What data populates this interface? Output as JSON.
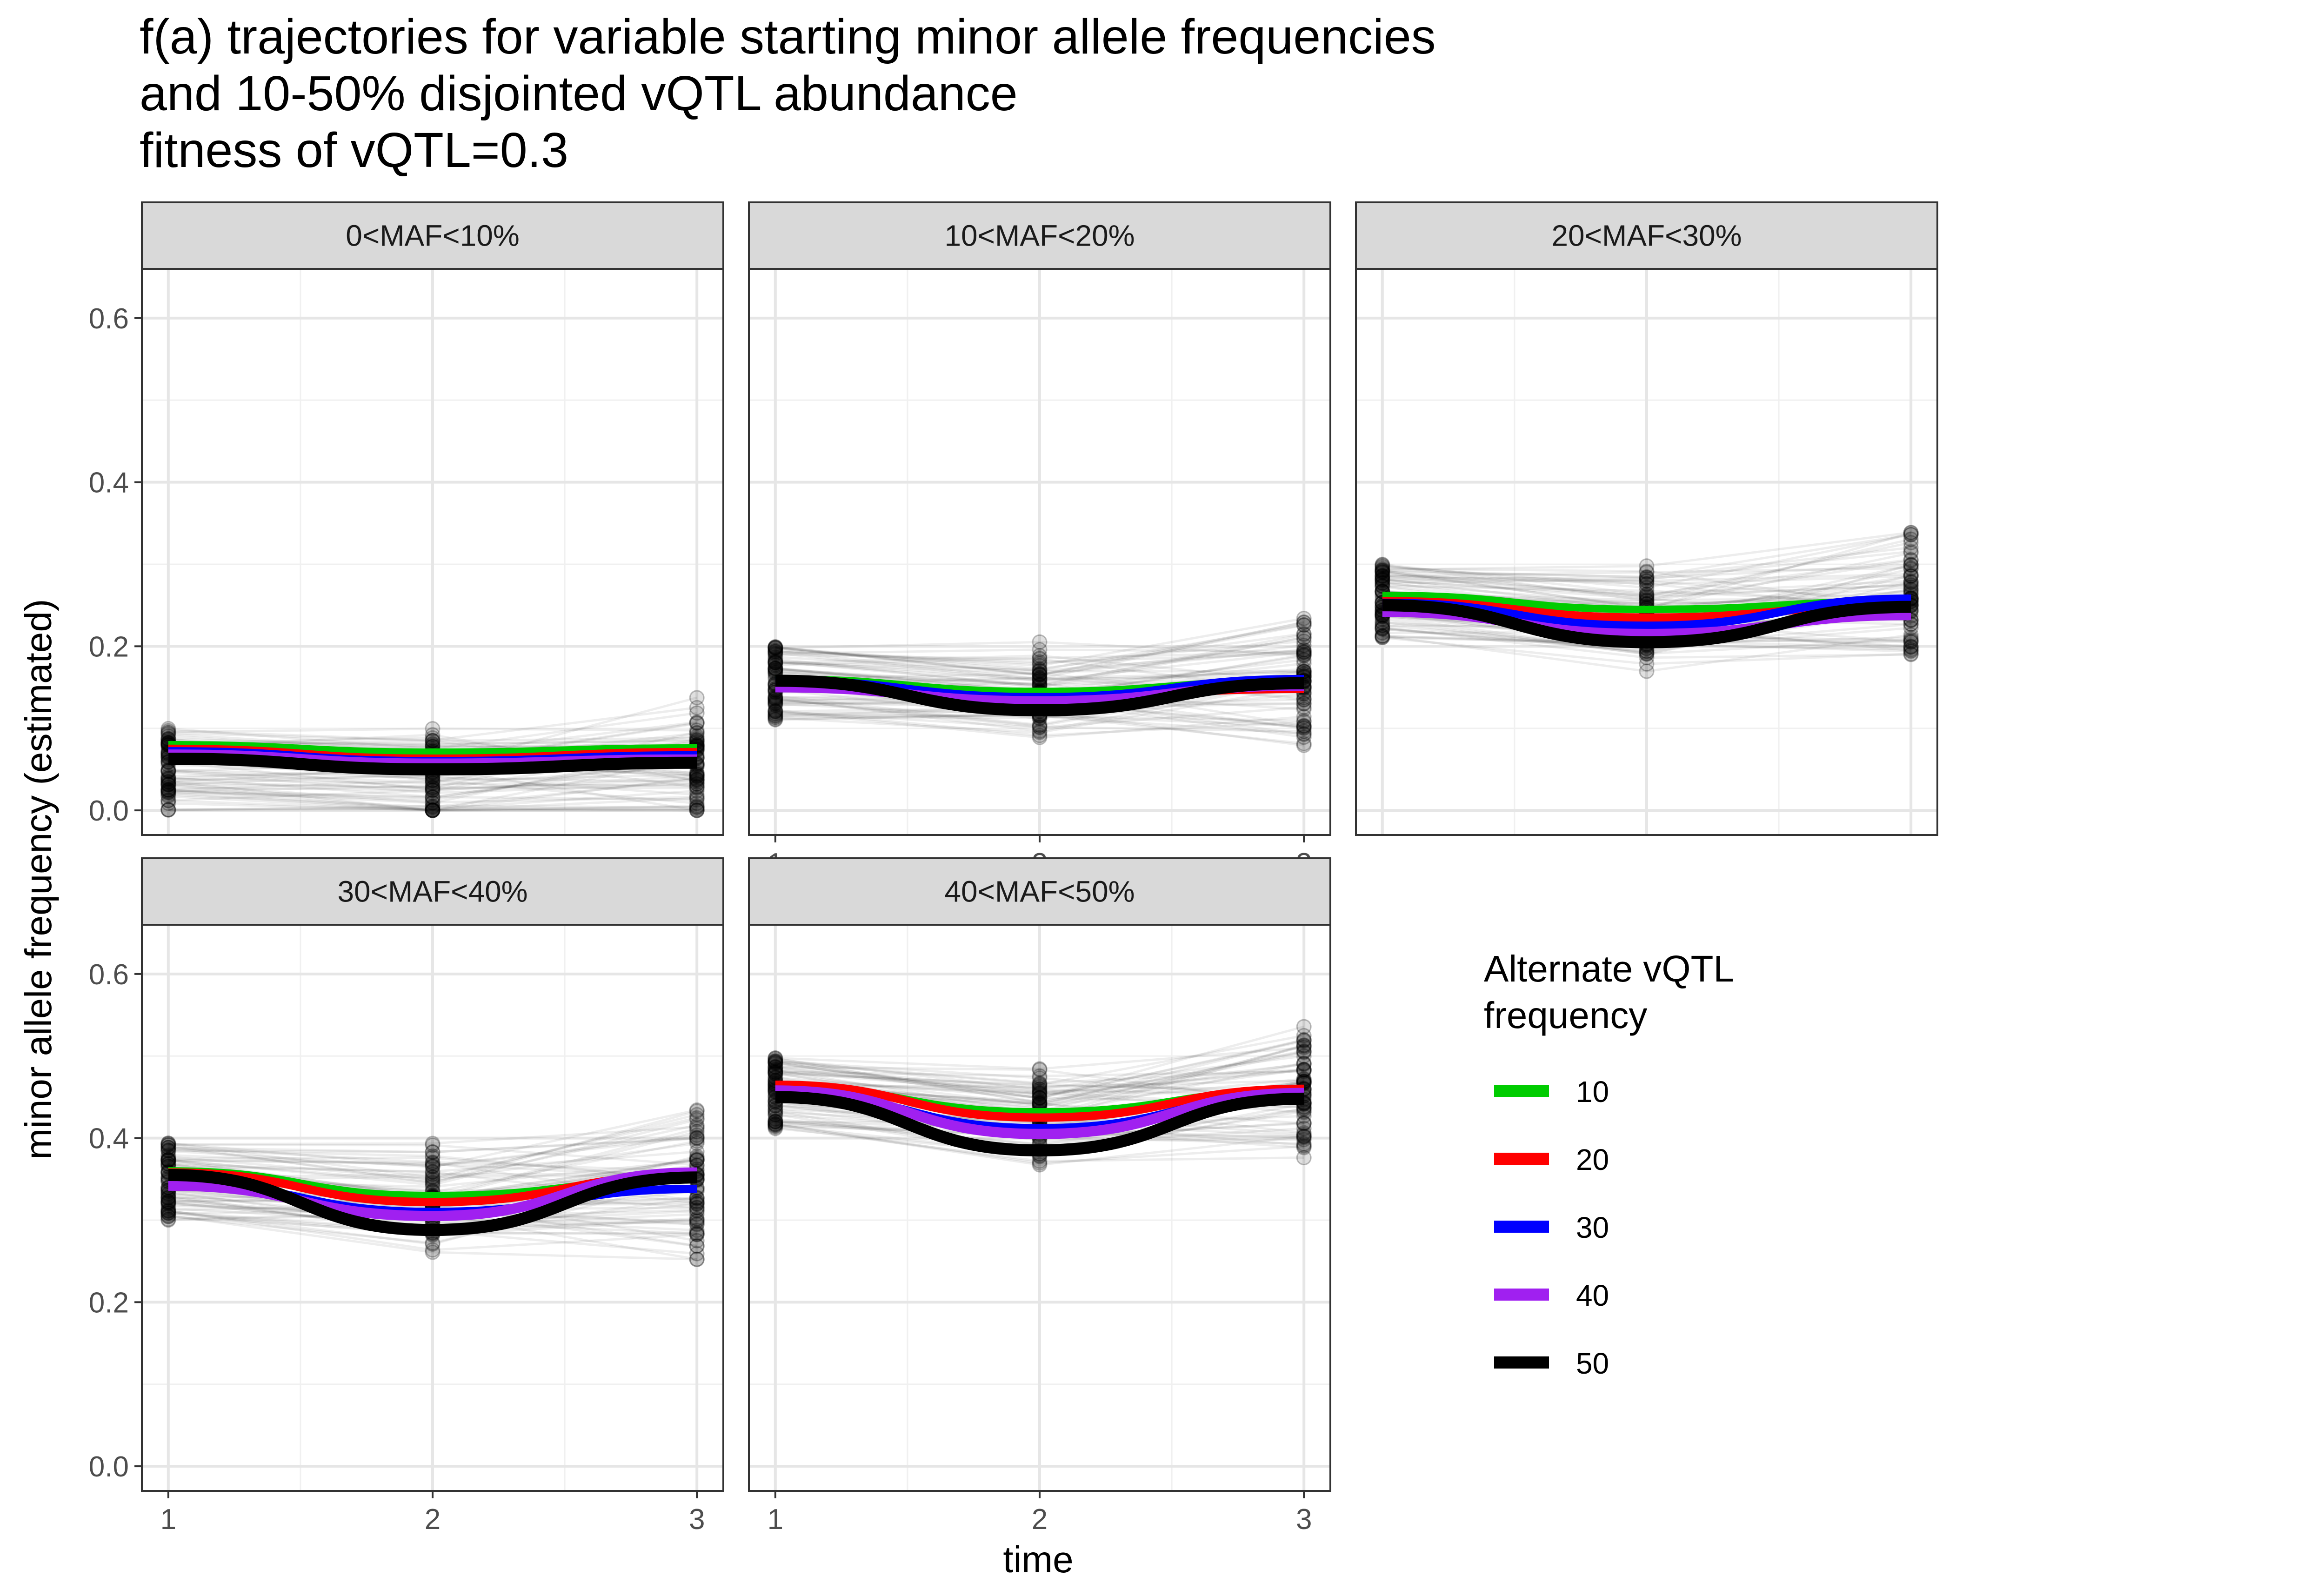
{
  "chart_data": {
    "type": "line",
    "title_lines": [
      "f(a) trajectories for variable starting minor allele frequencies",
      "and 10-50% disjointed vQTL abundance",
      "fitness of vQTL=0.3"
    ],
    "xlabel": "time",
    "ylabel": "minor allele frequency (estimated)",
    "x_ticks": [
      "1",
      "2",
      "3"
    ],
    "y_ticks": [
      "0.0",
      "0.2",
      "0.4",
      "0.6"
    ],
    "xlim": [
      0.9,
      3.1
    ],
    "ylim": [
      -0.03,
      0.66
    ],
    "grid": true,
    "legend": {
      "title_lines": [
        "Alternate vQTL",
        "frequency"
      ],
      "position": "right",
      "entries": [
        {
          "label": "10",
          "color": "#00CC00"
        },
        {
          "label": "20",
          "color": "#FF0000"
        },
        {
          "label": "30",
          "color": "#0000FF"
        },
        {
          "label": "40",
          "color": "#A020F0"
        },
        {
          "label": "50",
          "color": "#000000"
        }
      ]
    },
    "panels": [
      {
        "strip": "0<MAF<10%",
        "start_range": [
          0.0,
          0.1
        ],
        "x_axis_labels": false,
        "series": [
          {
            "name": "10",
            "color": "#00CC00",
            "x": [
              1,
              2,
              3
            ],
            "y": [
              0.08,
              0.071,
              0.076
            ]
          },
          {
            "name": "20",
            "color": "#FF0000",
            "x": [
              1,
              2,
              3
            ],
            "y": [
              0.075,
              0.063,
              0.071
            ]
          },
          {
            "name": "30",
            "color": "#0000FF",
            "x": [
              1,
              2,
              3
            ],
            "y": [
              0.072,
              0.06,
              0.067
            ]
          },
          {
            "name": "40",
            "color": "#A020F0",
            "x": [
              1,
              2,
              3
            ],
            "y": [
              0.068,
              0.057,
              0.062
            ]
          },
          {
            "name": "50",
            "color": "#000000",
            "x": [
              1,
              2,
              3
            ],
            "y": [
              0.063,
              0.05,
              0.058
            ]
          }
        ]
      },
      {
        "strip": "10<MAF<20%",
        "start_range": [
          0.11,
          0.2
        ],
        "x_axis_labels": true,
        "series": [
          {
            "name": "10",
            "color": "#00CC00",
            "x": [
              1,
              2,
              3
            ],
            "y": [
              0.16,
              0.145,
              0.158
            ]
          },
          {
            "name": "20",
            "color": "#FF0000",
            "x": [
              1,
              2,
              3
            ],
            "y": [
              0.155,
              0.138,
              0.148
            ]
          },
          {
            "name": "30",
            "color": "#0000FF",
            "x": [
              1,
              2,
              3
            ],
            "y": [
              0.158,
              0.138,
              0.16
            ]
          },
          {
            "name": "40",
            "color": "#A020F0",
            "x": [
              1,
              2,
              3
            ],
            "y": [
              0.15,
              0.133,
              0.152
            ]
          },
          {
            "name": "50",
            "color": "#000000",
            "x": [
              1,
              2,
              3
            ],
            "y": [
              0.158,
              0.122,
              0.155
            ]
          }
        ]
      },
      {
        "strip": "20<MAF<30%",
        "start_range": [
          0.21,
          0.3
        ],
        "x_axis_labels": false,
        "series": [
          {
            "name": "10",
            "color": "#00CC00",
            "x": [
              1,
              2,
              3
            ],
            "y": [
              0.262,
              0.245,
              0.255
            ]
          },
          {
            "name": "20",
            "color": "#FF0000",
            "x": [
              1,
              2,
              3
            ],
            "y": [
              0.255,
              0.235,
              0.25
            ]
          },
          {
            "name": "30",
            "color": "#0000FF",
            "x": [
              1,
              2,
              3
            ],
            "y": [
              0.253,
              0.225,
              0.258
            ]
          },
          {
            "name": "40",
            "color": "#A020F0",
            "x": [
              1,
              2,
              3
            ],
            "y": [
              0.242,
              0.215,
              0.238
            ]
          },
          {
            "name": "50",
            "color": "#000000",
            "x": [
              1,
              2,
              3
            ],
            "y": [
              0.25,
              0.205,
              0.248
            ]
          }
        ]
      },
      {
        "strip": "30<MAF<40%",
        "start_range": [
          0.3,
          0.4
        ],
        "x_axis_labels": true,
        "series": [
          {
            "name": "10",
            "color": "#00CC00",
            "x": [
              1,
              2,
              3
            ],
            "y": [
              0.36,
              0.33,
              0.35
            ]
          },
          {
            "name": "20",
            "color": "#FF0000",
            "x": [
              1,
              2,
              3
            ],
            "y": [
              0.358,
              0.322,
              0.355
            ]
          },
          {
            "name": "30",
            "color": "#0000FF",
            "x": [
              1,
              2,
              3
            ],
            "y": [
              0.345,
              0.31,
              0.338
            ]
          },
          {
            "name": "40",
            "color": "#A020F0",
            "x": [
              1,
              2,
              3
            ],
            "y": [
              0.342,
              0.305,
              0.358
            ]
          },
          {
            "name": "50",
            "color": "#000000",
            "x": [
              1,
              2,
              3
            ],
            "y": [
              0.355,
              0.288,
              0.352
            ]
          }
        ]
      },
      {
        "strip": "40<MAF<50%",
        "start_range": [
          0.41,
          0.5
        ],
        "x_axis_labels": true,
        "series": [
          {
            "name": "10",
            "color": "#00CC00",
            "x": [
              1,
              2,
              3
            ],
            "y": [
              0.462,
              0.432,
              0.458
            ]
          },
          {
            "name": "20",
            "color": "#FF0000",
            "x": [
              1,
              2,
              3
            ],
            "y": [
              0.465,
              0.425,
              0.46
            ]
          },
          {
            "name": "30",
            "color": "#0000FF",
            "x": [
              1,
              2,
              3
            ],
            "y": [
              0.455,
              0.412,
              0.452
            ]
          },
          {
            "name": "40",
            "color": "#A020F0",
            "x": [
              1,
              2,
              3
            ],
            "y": [
              0.458,
              0.405,
              0.455
            ]
          },
          {
            "name": "50",
            "color": "#000000",
            "x": [
              1,
              2,
              3
            ],
            "y": [
              0.45,
              0.385,
              0.448
            ]
          }
        ]
      }
    ]
  }
}
